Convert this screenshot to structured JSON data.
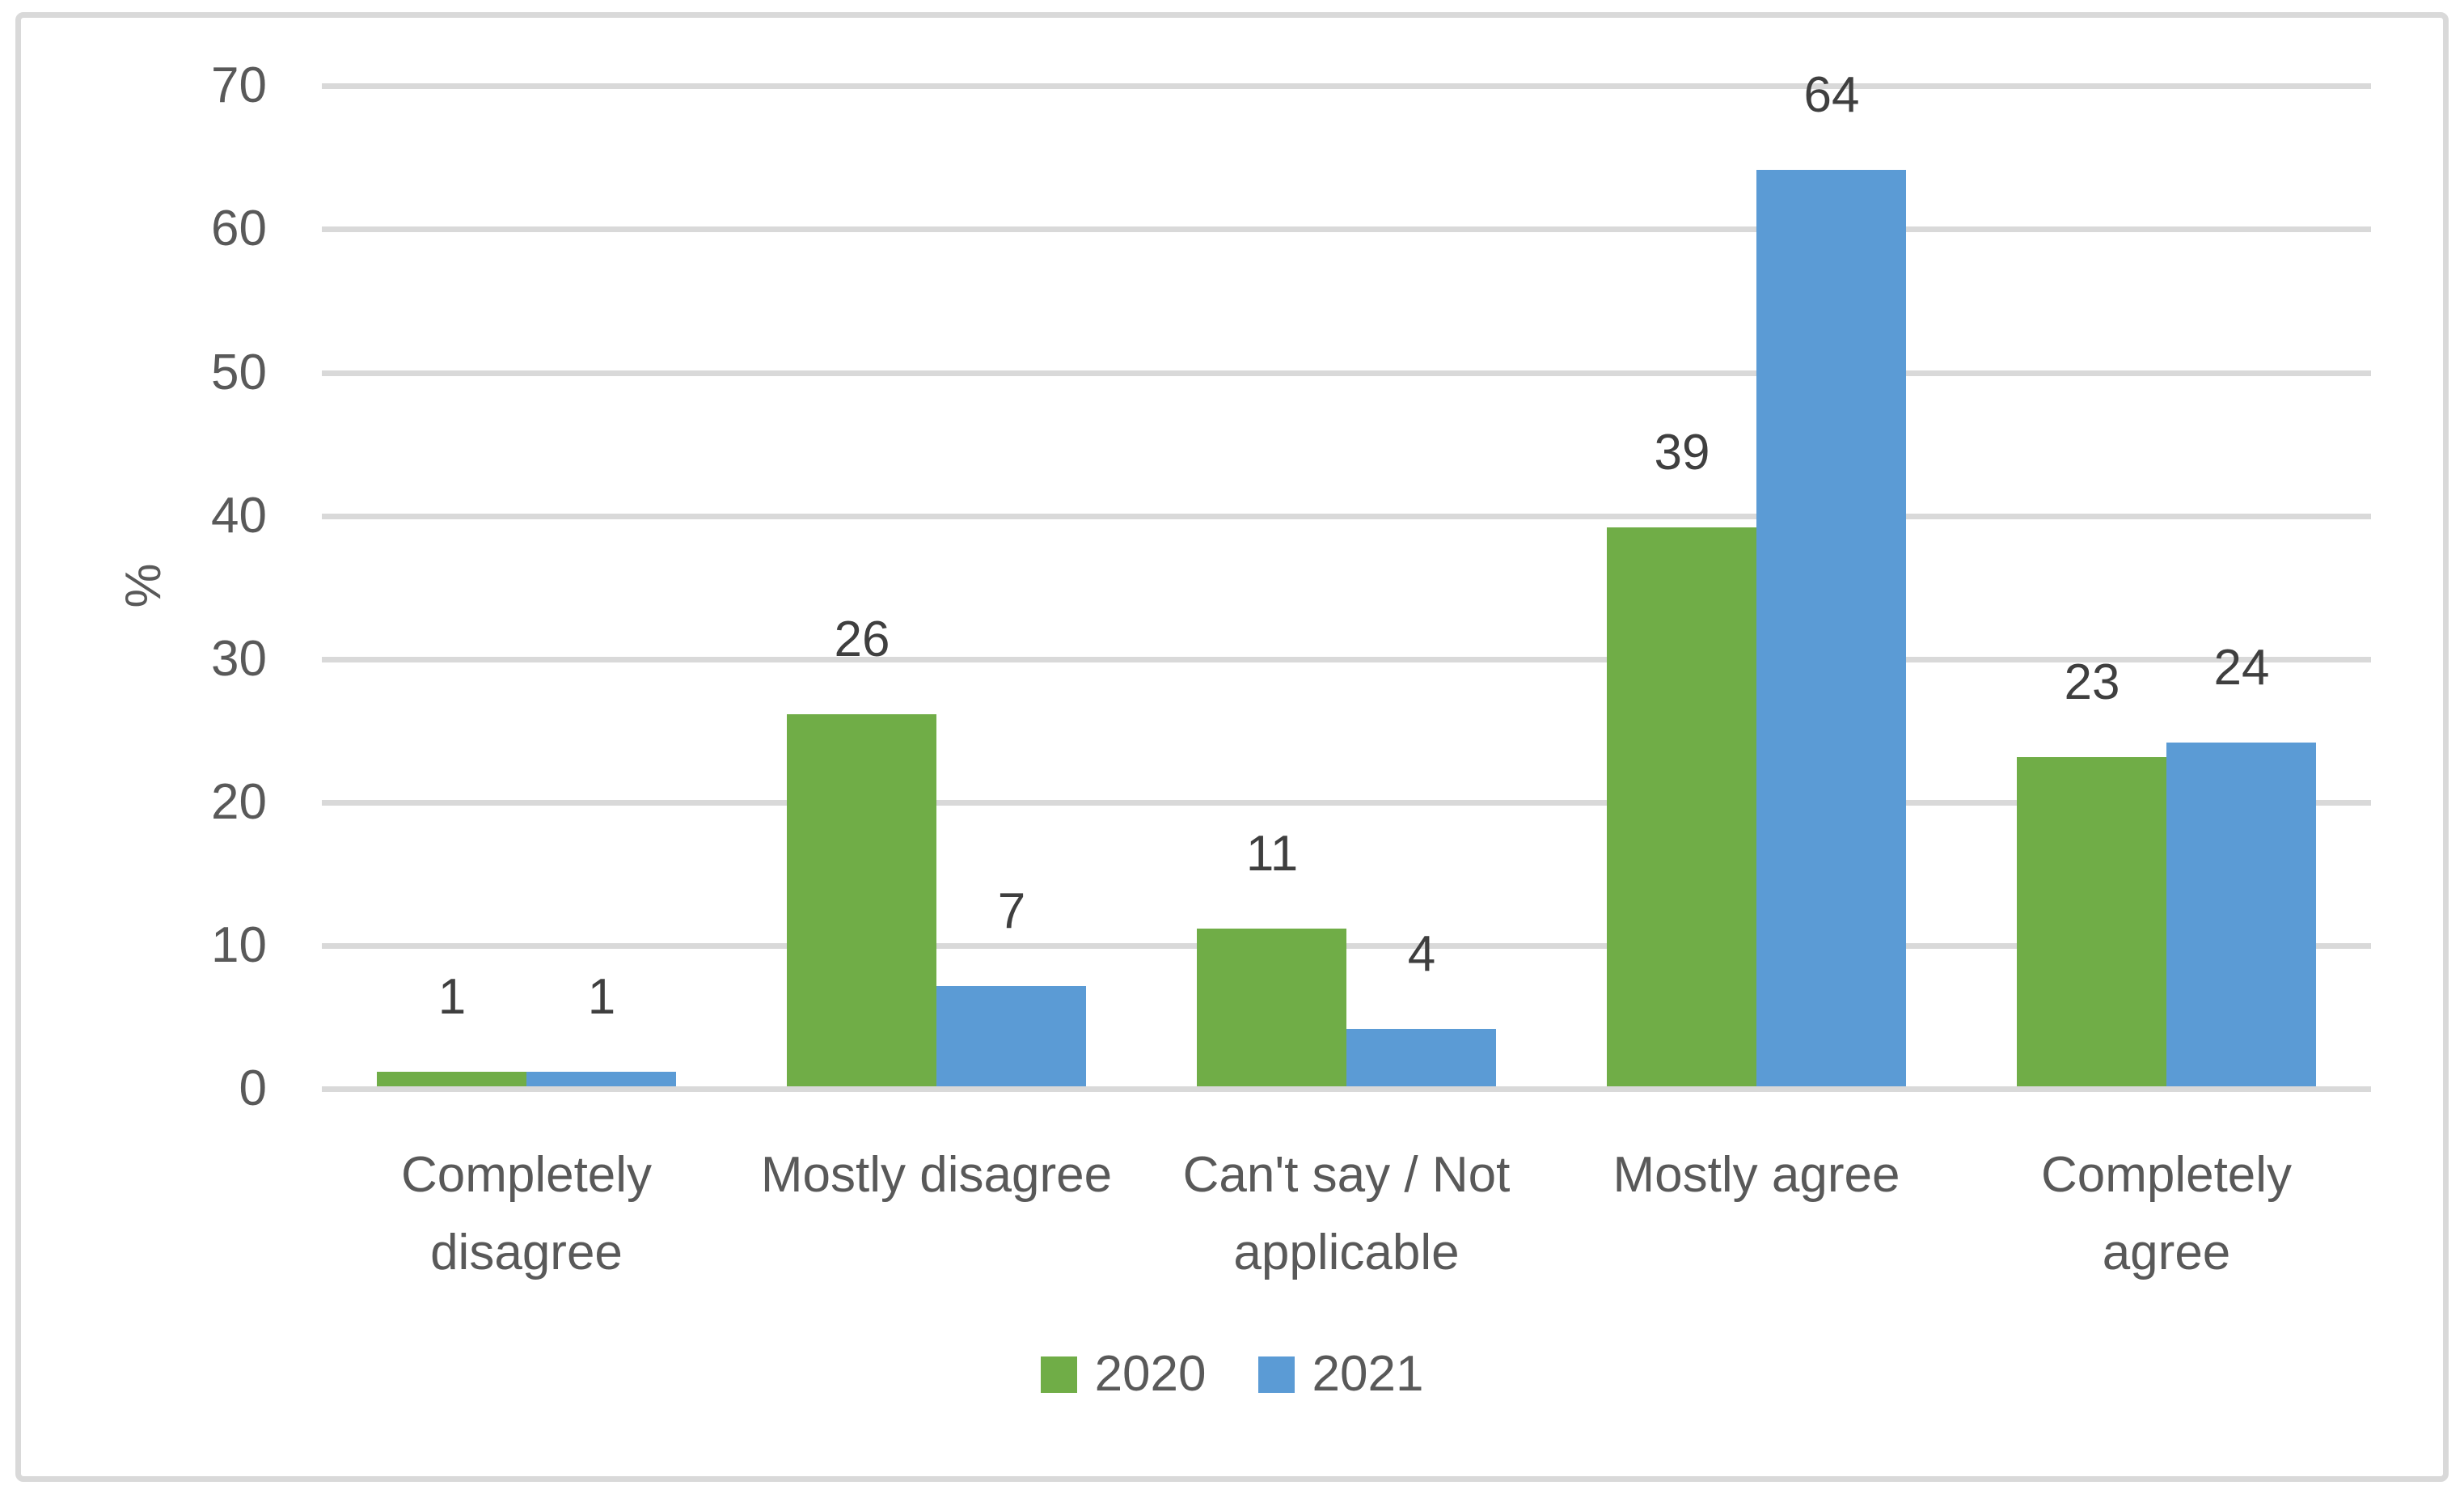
{
  "chart_data": {
    "type": "bar",
    "categories": [
      "Completely disagree",
      "Mostly disagree",
      "Can't say / Not applicable",
      "Mostly agree",
      "Completely agree"
    ],
    "series": [
      {
        "name": "2020",
        "color": "#70AD47",
        "values": [
          1,
          26,
          11,
          39,
          23
        ]
      },
      {
        "name": "2021",
        "color": "#5B9BD5",
        "values": [
          1,
          7,
          4,
          64,
          24
        ]
      }
    ],
    "title": "",
    "xlabel": "",
    "ylabel": "%",
    "ylim": [
      0,
      70
    ],
    "yticks": [
      0,
      10,
      20,
      30,
      40,
      50,
      60,
      70
    ],
    "grid": true,
    "data_labels": true,
    "legend_position": "bottom"
  },
  "colors": {
    "grid": "#D9D9D9",
    "frame_border": "#D9D9D9",
    "axis_text": "#595959",
    "data_label_text": "#3F3F3F",
    "background": "#FFFFFF"
  }
}
